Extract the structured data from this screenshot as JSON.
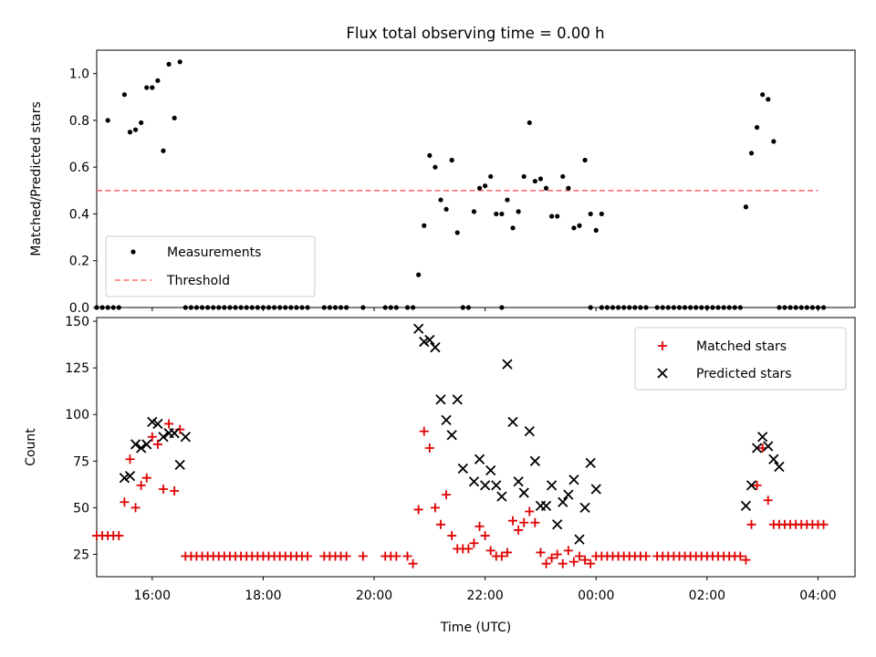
{
  "title": "Flux total observing time = 0.00 h",
  "colors": {
    "measurement": "#000000",
    "threshold": "#ff7070",
    "matched": "#e00000",
    "predicted": "#000000"
  },
  "chart_data": [
    {
      "type": "scatter",
      "ylabel": "Matched/Predicted stars",
      "xlim": [
        "15:00",
        "04:40"
      ],
      "ylim": [
        0,
        1.1
      ],
      "yticks": [
        "0.0",
        "0.2",
        "0.4",
        "0.6",
        "0.8",
        "1.0"
      ],
      "legend": {
        "placement": "lower-left",
        "entries": [
          "Measurements",
          "Threshold"
        ]
      },
      "threshold": {
        "value": 0.5,
        "x_start": "15:00",
        "x_end": "04:00"
      },
      "series": [
        {
          "name": "Measurements",
          "x": [
            "15:12",
            "15:30",
            "15:36",
            "15:42",
            "15:48",
            "15:54",
            "16:00",
            "16:06",
            "16:12",
            "16:18",
            "16:24",
            "16:30",
            "20:48",
            "20:54",
            "21:00",
            "21:06",
            "21:12",
            "21:18",
            "21:24",
            "21:30",
            "21:48",
            "21:54",
            "22:00",
            "22:06",
            "22:12",
            "22:18",
            "22:24",
            "22:30",
            "22:36",
            "22:42",
            "22:48",
            "22:54",
            "23:00",
            "23:06",
            "23:12",
            "23:18",
            "23:24",
            "23:30",
            "23:36",
            "23:42",
            "23:48",
            "23:54",
            "00:00",
            "00:06",
            "02:42",
            "02:48",
            "02:54",
            "03:00",
            "03:06",
            "03:12"
          ],
          "y": [
            0.8,
            0.91,
            0.75,
            0.76,
            0.79,
            0.94,
            0.94,
            0.97,
            0.67,
            1.04,
            0.81,
            1.05,
            0.14,
            0.35,
            0.65,
            0.6,
            0.46,
            0.42,
            0.63,
            0.32,
            0.41,
            0.51,
            0.52,
            0.56,
            0.4,
            0.4,
            0.46,
            0.34,
            0.41,
            0.56,
            0.79,
            0.54,
            0.55,
            0.51,
            0.39,
            0.39,
            0.56,
            0.51,
            0.34,
            0.35,
            0.63,
            0.4,
            0.33,
            0.4,
            0.43,
            0.66,
            0.77,
            0.91,
            0.89,
            0.71
          ]
        },
        {
          "name": "Measurements",
          "x": [
            "15:00",
            "15:06",
            "15:12",
            "15:18",
            "15:24",
            "16:36",
            "16:42",
            "16:48",
            "16:54",
            "17:00",
            "17:06",
            "17:12",
            "17:18",
            "17:24",
            "17:30",
            "17:36",
            "17:42",
            "17:48",
            "17:54",
            "18:00",
            "18:06",
            "18:12",
            "18:18",
            "18:24",
            "18:30",
            "18:36",
            "18:42",
            "18:48",
            "19:06",
            "19:12",
            "19:18",
            "19:24",
            "19:30",
            "19:48",
            "20:12",
            "20:18",
            "20:24",
            "20:36",
            "20:42",
            "21:36",
            "21:42",
            "22:18",
            "23:54",
            "00:06",
            "00:12",
            "00:18",
            "00:24",
            "00:30",
            "00:36",
            "00:42",
            "00:48",
            "00:54",
            "01:06",
            "01:12",
            "01:18",
            "01:24",
            "01:30",
            "01:36",
            "01:42",
            "01:48",
            "01:54",
            "02:00",
            "02:06",
            "02:12",
            "02:18",
            "02:24",
            "02:30",
            "02:36",
            "03:18",
            "03:24",
            "03:30",
            "03:36",
            "03:42",
            "03:48",
            "03:54",
            "04:00",
            "04:06"
          ],
          "y": [
            0,
            0,
            0,
            0,
            0,
            0,
            0,
            0,
            0,
            0,
            0,
            0,
            0,
            0,
            0,
            0,
            0,
            0,
            0,
            0,
            0,
            0,
            0,
            0,
            0,
            0,
            0,
            0,
            0,
            0,
            0,
            0,
            0,
            0,
            0,
            0,
            0,
            0,
            0,
            0,
            0,
            0,
            0,
            0,
            0,
            0,
            0,
            0,
            0,
            0,
            0,
            0,
            0,
            0,
            0,
            0,
            0,
            0,
            0,
            0,
            0,
            0,
            0,
            0,
            0,
            0,
            0,
            0,
            0,
            0,
            0,
            0,
            0,
            0,
            0,
            0,
            0
          ]
        }
      ]
    },
    {
      "type": "scatter",
      "xlabel": "Time (UTC)",
      "ylabel": "Count",
      "xlim": [
        "15:00",
        "04:40"
      ],
      "ylim": [
        13,
        152
      ],
      "xticks": [
        "16:00",
        "18:00",
        "20:00",
        "22:00",
        "00:00",
        "02:00",
        "04:00"
      ],
      "yticks": [
        "25",
        "50",
        "75",
        "100",
        "125",
        "150"
      ],
      "legend": {
        "placement": "top-right",
        "entries": [
          "Matched stars",
          "Predicted stars"
        ]
      },
      "series": [
        {
          "name": "Matched stars",
          "x": [
            "15:00",
            "15:06",
            "15:12",
            "15:18",
            "15:24",
            "15:30",
            "15:36",
            "15:42",
            "15:48",
            "15:54",
            "16:00",
            "16:06",
            "16:12",
            "16:18",
            "16:24",
            "16:30",
            "16:36",
            "16:42",
            "16:48",
            "16:54",
            "17:00",
            "17:06",
            "17:12",
            "17:18",
            "17:24",
            "17:30",
            "17:36",
            "17:42",
            "17:48",
            "17:54",
            "18:00",
            "18:06",
            "18:12",
            "18:18",
            "18:24",
            "18:30",
            "18:36",
            "18:42",
            "18:48",
            "19:06",
            "19:12",
            "19:18",
            "19:24",
            "19:30",
            "19:48",
            "20:12",
            "20:18",
            "20:24",
            "20:36",
            "20:42",
            "20:48",
            "20:54",
            "21:00",
            "21:06",
            "21:12",
            "21:18",
            "21:24",
            "21:30",
            "21:36",
            "21:42",
            "21:48",
            "21:54",
            "22:00",
            "22:06",
            "22:12",
            "22:18",
            "22:24",
            "22:30",
            "22:36",
            "22:42",
            "22:48",
            "22:54",
            "23:00",
            "23:06",
            "23:12",
            "23:18",
            "23:24",
            "23:30",
            "23:36",
            "23:42",
            "23:48",
            "23:54",
            "00:00",
            "00:06",
            "00:12",
            "00:18",
            "00:24",
            "00:30",
            "00:36",
            "00:42",
            "00:48",
            "00:54",
            "01:06",
            "01:12",
            "01:18",
            "01:24",
            "01:30",
            "01:36",
            "01:42",
            "01:48",
            "01:54",
            "02:00",
            "02:06",
            "02:12",
            "02:18",
            "02:24",
            "02:30",
            "02:36",
            "02:42",
            "02:48",
            "02:54",
            "03:00",
            "03:06",
            "03:12",
            "03:18",
            "03:24",
            "03:30",
            "03:36",
            "03:42",
            "03:48",
            "03:54",
            "04:00",
            "04:06"
          ],
          "y": [
            35,
            35,
            35,
            35,
            35,
            53,
            76,
            50,
            62,
            66,
            88,
            84,
            60,
            95,
            59,
            92,
            24,
            24,
            24,
            24,
            24,
            24,
            24,
            24,
            24,
            24,
            24,
            24,
            24,
            24,
            24,
            24,
            24,
            24,
            24,
            24,
            24,
            24,
            24,
            24,
            24,
            24,
            24,
            24,
            24,
            24,
            24,
            24,
            24,
            20,
            49,
            91,
            82,
            50,
            41,
            57,
            35,
            28,
            28,
            28,
            31,
            40,
            35,
            27,
            24,
            24,
            26,
            43,
            38,
            42,
            48,
            42,
            26,
            20,
            23,
            25,
            20,
            27,
            21,
            24,
            22,
            20,
            24,
            24,
            24,
            24,
            24,
            24,
            24,
            24,
            24,
            24,
            24,
            24,
            24,
            24,
            24,
            24,
            24,
            24,
            24,
            24,
            24,
            24,
            24,
            24,
            24,
            24,
            22,
            41,
            62,
            82,
            54,
            41,
            41,
            41,
            41,
            41,
            41,
            41,
            41,
            41,
            41
          ]
        },
        {
          "name": "Predicted stars",
          "x": [
            "15:30",
            "15:36",
            "15:42",
            "15:48",
            "15:54",
            "16:00",
            "16:06",
            "16:12",
            "16:18",
            "16:24",
            "16:30",
            "16:36",
            "20:48",
            "20:54",
            "21:00",
            "21:06",
            "21:12",
            "21:18",
            "21:24",
            "21:30",
            "21:36",
            "21:48",
            "21:54",
            "22:00",
            "22:06",
            "22:12",
            "22:18",
            "22:24",
            "22:30",
            "22:36",
            "22:42",
            "22:48",
            "22:54",
            "23:00",
            "23:06",
            "23:12",
            "23:18",
            "23:24",
            "23:30",
            "23:36",
            "23:42",
            "23:48",
            "23:54",
            "00:00",
            "02:42",
            "02:48",
            "02:54",
            "03:00",
            "03:06",
            "03:12",
            "03:18"
          ],
          "y": [
            66,
            67,
            84,
            82,
            84,
            96,
            95,
            88,
            90,
            90,
            73,
            88,
            146,
            139,
            140,
            136,
            108,
            97,
            89,
            108,
            71,
            64,
            76,
            62,
            70,
            62,
            56,
            127,
            96,
            64,
            58,
            91,
            75,
            51,
            51,
            62,
            41,
            53,
            57,
            65,
            33,
            50,
            74,
            60,
            51,
            62,
            82,
            88,
            83,
            76,
            72
          ]
        }
      ]
    }
  ]
}
